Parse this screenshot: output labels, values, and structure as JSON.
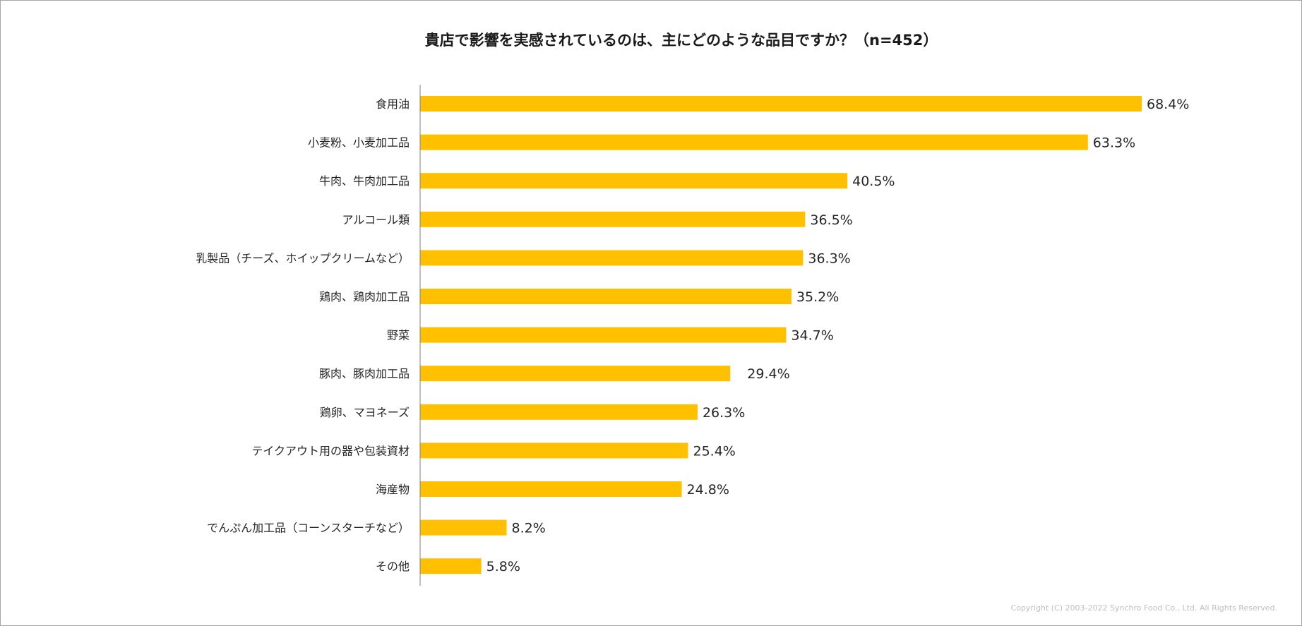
{
  "chart_data": {
    "type": "bar",
    "orientation": "horizontal",
    "title": "貴店で影響を実感されているのは、主にどのような品目ですか？（n=452）",
    "categories": [
      "食用油",
      "小麦粉、小麦加工品",
      "牛肉、牛肉加工品",
      "アルコール類",
      "乳製品（チーズ、ホイップクリームなど）",
      "鶏肉、鶏肉加工品",
      "野菜",
      "豚肉、豚肉加工品",
      "鶏卵、マヨネーズ",
      "テイクアウト用の器や包装資材",
      "海産物",
      "でんぷん加工品（コーンスターチなど）",
      "その他"
    ],
    "values": [
      68.4,
      63.3,
      40.5,
      36.5,
      36.3,
      35.2,
      34.7,
      29.4,
      26.3,
      25.4,
      24.8,
      8.2,
      5.8
    ],
    "value_labels": [
      "68.4%",
      "63.3%",
      "40.5%",
      "36.5%",
      "36.3%",
      "35.2%",
      "34.7%",
      "29.4%",
      "26.3%",
      "25.4%",
      "24.8%",
      "8.2%",
      "5.8%"
    ],
    "unit": "%",
    "xlim": [
      0,
      68.4
    ],
    "xlabel": "",
    "ylabel": "",
    "grid": false,
    "legend": "none",
    "bar_color": "#FFC000",
    "axis_color": "#808080"
  },
  "footer": {
    "copyright": "Copyright (C) 2003-2022   Synchro Food Co., Ltd. All Rights Reserved."
  }
}
